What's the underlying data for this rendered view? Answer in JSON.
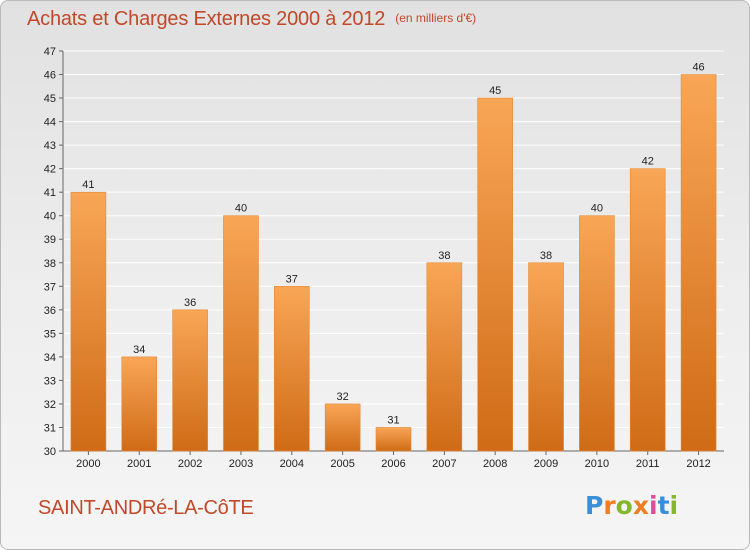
{
  "header": {
    "title": "Achats et Charges Externes 2000 à 2012",
    "subtitle": "(en milliers d'€)"
  },
  "footer": {
    "city": "SAINT-ANDRé-LA-CôTE",
    "logo_text": "Proxiti",
    "logo_colors": [
      "#3b8fd6",
      "#f07e1f",
      "#86b62c",
      "#f07e1f",
      "#e24a9a",
      "#3b8fd6",
      "#86b62c"
    ]
  },
  "colors": {
    "bar_light": "#f8a656",
    "bar_dark": "#cf6b16",
    "text_accent": "#c1492a",
    "axis_text": "#222222",
    "grid": "#ffffff"
  },
  "chart_data": {
    "type": "bar",
    "categories": [
      "2000",
      "2001",
      "2002",
      "2003",
      "2004",
      "2005",
      "2006",
      "2007",
      "2008",
      "2009",
      "2010",
      "2011",
      "2012"
    ],
    "values": [
      41,
      34,
      36,
      40,
      37,
      32,
      31,
      38,
      45,
      38,
      40,
      42,
      46
    ],
    "title": "Achats et Charges Externes 2000 à 2012",
    "subtitle": "(en milliers d'€)",
    "xlabel": "",
    "ylabel": "",
    "ylim": [
      30,
      47
    ],
    "yticks": [
      30,
      31,
      32,
      33,
      34,
      35,
      36,
      37,
      38,
      39,
      40,
      41,
      42,
      43,
      44,
      45,
      46,
      47
    ],
    "grid": true,
    "data_labels": true
  }
}
